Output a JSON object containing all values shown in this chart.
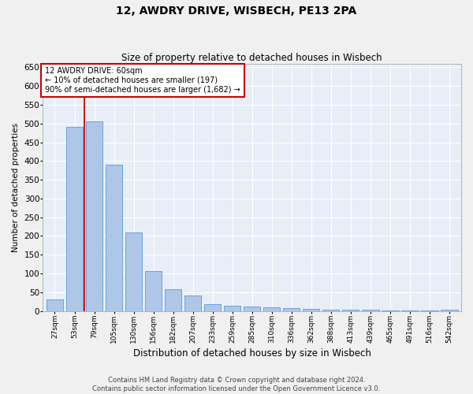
{
  "title": "12, AWDRY DRIVE, WISBECH, PE13 2PA",
  "subtitle": "Size of property relative to detached houses in Wisbech",
  "xlabel": "Distribution of detached houses by size in Wisbech",
  "ylabel": "Number of detached properties",
  "footer": "Contains HM Land Registry data © Crown copyright and database right 2024.\nContains public sector information licensed under the Open Government Licence v3.0.",
  "categories": [
    "27sqm",
    "53sqm",
    "79sqm",
    "105sqm",
    "130sqm",
    "156sqm",
    "182sqm",
    "207sqm",
    "233sqm",
    "259sqm",
    "285sqm",
    "310sqm",
    "336sqm",
    "362sqm",
    "388sqm",
    "413sqm",
    "439sqm",
    "465sqm",
    "491sqm",
    "516sqm",
    "542sqm"
  ],
  "values": [
    30,
    492,
    505,
    390,
    210,
    107,
    58,
    40,
    18,
    14,
    12,
    10,
    8,
    5,
    4,
    4,
    3,
    2,
    2,
    1,
    4
  ],
  "bar_color": "#aec6e8",
  "bar_edge_color": "#5b9bd5",
  "background_color": "#e8eef8",
  "grid_color": "#ffffff",
  "red_line_x": 1.5,
  "annotation_line1": "12 AWDRY DRIVE: 60sqm",
  "annotation_line2": "← 10% of detached houses are smaller (197)",
  "annotation_line3": "90% of semi-detached houses are larger (1,682) →",
  "annotation_box_color": "#ffffff",
  "annotation_box_edge_color": "#cc0000",
  "fig_bg_color": "#f0f0f0",
  "ylim": [
    0,
    660
  ],
  "yticks": [
    0,
    50,
    100,
    150,
    200,
    250,
    300,
    350,
    400,
    450,
    500,
    550,
    600,
    650
  ]
}
